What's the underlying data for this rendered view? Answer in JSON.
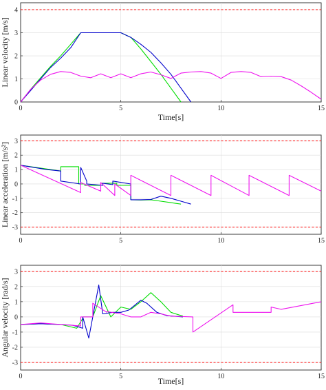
{
  "chart_data": [
    {
      "type": "line",
      "xlabel": "Time[s]",
      "ylabel": "Linear velocity [m/s]",
      "xlim": [
        0,
        15
      ],
      "ylim": [
        0,
        4.3
      ],
      "xticks": [
        0,
        5,
        10,
        15
      ],
      "yticks": [
        0,
        1,
        2,
        3,
        4
      ],
      "xtick_labels": [
        "0",
        "5",
        "10",
        "15"
      ],
      "ytick_labels": [
        "0",
        "1",
        "2",
        "3",
        "4"
      ],
      "grid": true,
      "reference_lines": [
        {
          "y": 4,
          "color": "#ff0000",
          "style": "dashed"
        }
      ],
      "series": [
        {
          "color": "#00dd00",
          "x": [
            0,
            0.5,
            1.0,
            1.5,
            2.0,
            2.5,
            2.75,
            3.0,
            4.0,
            5.0,
            5.5,
            6.0,
            6.5,
            7.0,
            7.5,
            8.0
          ],
          "y": [
            0,
            0.55,
            1.05,
            1.55,
            2.0,
            2.5,
            2.75,
            3.0,
            3.0,
            3.0,
            2.8,
            2.3,
            1.75,
            1.2,
            0.6,
            0.0
          ]
        },
        {
          "color": "#0000cc",
          "x": [
            0,
            0.5,
            1.0,
            1.5,
            2.0,
            2.5,
            3.0,
            4.0,
            5.0,
            5.5,
            6.0,
            6.5,
            7.0,
            7.5,
            8.0,
            8.5
          ],
          "y": [
            0,
            0.5,
            1.0,
            1.5,
            1.9,
            2.35,
            3.0,
            3.0,
            3.0,
            2.8,
            2.5,
            2.15,
            1.7,
            1.2,
            0.6,
            0.0
          ]
        },
        {
          "color": "#ee11ee",
          "x": [
            0,
            0.5,
            1.0,
            1.5,
            2.0,
            2.5,
            3.0,
            3.5,
            4.0,
            4.5,
            5.0,
            5.5,
            6.0,
            6.5,
            7.0,
            7.5,
            8.0,
            8.5,
            9.0,
            9.5,
            10.0,
            10.5,
            11.0,
            11.5,
            12.0,
            12.5,
            13.0,
            13.5,
            14.0,
            14.5,
            15.0
          ],
          "y": [
            0,
            0.55,
            0.95,
            1.2,
            1.32,
            1.28,
            1.12,
            1.05,
            1.22,
            1.05,
            1.22,
            1.05,
            1.22,
            1.3,
            1.18,
            1.02,
            1.25,
            1.3,
            1.32,
            1.25,
            1.02,
            1.28,
            1.32,
            1.28,
            1.1,
            1.12,
            1.1,
            0.95,
            0.7,
            0.42,
            0.12
          ]
        }
      ]
    },
    {
      "type": "line",
      "xlabel": "",
      "ylabel": "Linear acceleration [m/s²]",
      "xlim": [
        0,
        15
      ],
      "ylim": [
        -3.5,
        3.4
      ],
      "xticks": [
        0,
        5,
        10,
        15
      ],
      "yticks": [
        -3,
        -2,
        -1,
        0,
        1,
        2,
        3
      ],
      "xtick_labels": [
        "0",
        "5",
        "10",
        "15"
      ],
      "ytick_labels": [
        "-3",
        "-2",
        "-1",
        "0",
        "1",
        "2",
        "3"
      ],
      "grid": true,
      "reference_lines": [
        {
          "y": 3,
          "color": "#ff0000",
          "style": "dashed"
        },
        {
          "y": -3,
          "color": "#ff0000",
          "style": "dashed"
        }
      ],
      "series": [
        {
          "color": "#00dd00",
          "x": [
            0,
            2.0,
            2.0,
            2.9,
            2.9,
            3.2,
            3.2,
            4.0,
            4.0,
            4.8,
            4.8,
            5.5,
            5.5,
            6.0,
            6.5,
            7.0,
            7.5,
            8.0
          ],
          "y": [
            1.3,
            0.9,
            1.2,
            1.2,
            0.0,
            0.0,
            -0.1,
            -0.1,
            0.05,
            0.05,
            -0.1,
            -0.1,
            -1.1,
            -1.12,
            -1.1,
            -1.2,
            -1.3,
            -1.4
          ]
        },
        {
          "color": "#0000cc",
          "x": [
            0,
            1.3,
            2.0,
            2.0,
            3.0,
            3.0,
            3.3,
            3.3,
            4.1,
            4.1,
            4.6,
            4.6,
            5.5,
            5.5,
            6.0,
            6.5,
            7.0,
            7.5,
            8.0,
            8.5
          ],
          "y": [
            1.3,
            1.0,
            0.9,
            0.2,
            0.0,
            1.15,
            0.2,
            0.0,
            -0.1,
            0.05,
            -0.05,
            0.2,
            0.0,
            -1.1,
            -1.1,
            -1.08,
            -0.85,
            -1.0,
            -1.2,
            -1.4
          ]
        },
        {
          "color": "#ee11ee",
          "x": [
            0,
            3.0,
            3.0,
            4.0,
            4.0,
            4.7,
            4.7,
            5.5,
            5.5,
            7.5,
            7.5,
            9.5,
            9.5,
            11.4,
            11.4,
            13.4,
            13.4,
            15.0
          ],
          "y": [
            1.3,
            -0.6,
            0.1,
            -0.5,
            0.1,
            -0.8,
            0.0,
            -0.8,
            0.6,
            -0.8,
            0.6,
            -0.8,
            0.6,
            -0.8,
            0.6,
            -0.8,
            0.6,
            -0.5
          ]
        }
      ]
    },
    {
      "type": "line",
      "xlabel": "Time[s]",
      "ylabel": "Angular velocity [rad/s]",
      "xlim": [
        0,
        15
      ],
      "ylim": [
        -3.5,
        3.4
      ],
      "xticks": [
        0,
        5,
        10,
        15
      ],
      "yticks": [
        -3,
        -2,
        -1,
        0,
        1,
        2,
        3
      ],
      "xtick_labels": [
        "0",
        "5",
        "10",
        "15"
      ],
      "ytick_labels": [
        "-3",
        "-2",
        "-1",
        "0",
        "1",
        "2",
        "3"
      ],
      "grid": true,
      "reference_lines": [
        {
          "y": 3,
          "color": "#ff0000",
          "style": "dashed"
        },
        {
          "y": -3,
          "color": "#ff0000",
          "style": "dashed"
        }
      ],
      "series": [
        {
          "color": "#00dd00",
          "x": [
            0,
            1.0,
            2.0,
            2.8,
            3.1,
            3.1,
            3.6,
            4.0,
            4.5,
            5.0,
            5.5,
            6.0,
            6.5,
            7.0,
            7.5,
            8.1
          ],
          "y": [
            -0.5,
            -0.45,
            -0.5,
            -0.75,
            -0.1,
            0.0,
            0.0,
            1.4,
            0.0,
            0.65,
            0.5,
            1.0,
            1.6,
            1.0,
            0.3,
            0.05
          ]
        },
        {
          "color": "#0000cc",
          "x": [
            0,
            1.0,
            2.0,
            2.6,
            3.1,
            3.1,
            3.4,
            3.9,
            4.1,
            4.6,
            5.0,
            5.4,
            6.0,
            6.3,
            6.8,
            7.3,
            8.1
          ],
          "y": [
            -0.5,
            -0.45,
            -0.5,
            -0.55,
            -0.75,
            0.0,
            -1.4,
            2.1,
            0.2,
            0.3,
            0.3,
            0.45,
            1.1,
            0.9,
            0.3,
            0.08,
            0.0
          ]
        },
        {
          "color": "#ee11ee",
          "x": [
            0,
            1.0,
            2.0,
            3.0,
            3.0,
            3.6,
            3.6,
            4.3,
            4.3,
            5.0,
            5.5,
            6.0,
            6.5,
            7.0,
            7.5,
            8.6,
            8.6,
            10.6,
            10.6,
            12.5,
            12.5,
            13.0,
            14.0,
            15.0
          ],
          "y": [
            -0.5,
            -0.4,
            -0.5,
            -0.6,
            0.0,
            0.0,
            0.9,
            0.3,
            0.35,
            0.2,
            0.0,
            0.0,
            0.3,
            0.2,
            0.05,
            0.0,
            -1.0,
            0.8,
            0.3,
            0.3,
            0.65,
            0.5,
            0.75,
            1.0
          ]
        }
      ]
    }
  ]
}
